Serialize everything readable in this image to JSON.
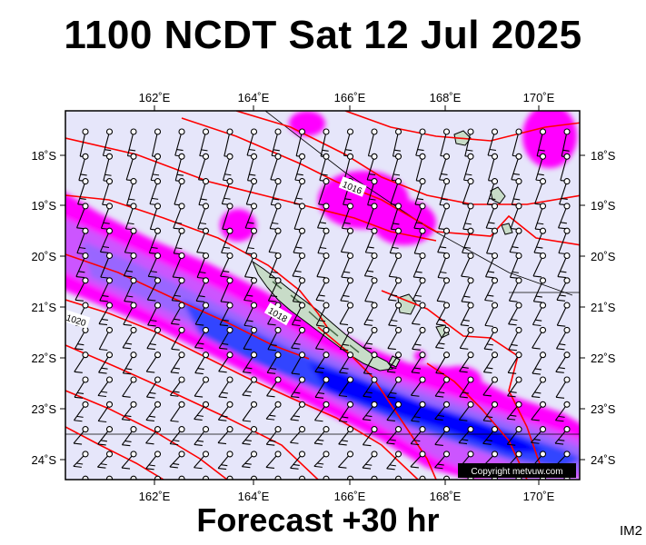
{
  "header": {
    "title": "1100 NCDT Sat 12 Jul 2025"
  },
  "footer": {
    "forecast": "Forecast +30 hr",
    "code": "IM2"
  },
  "map": {
    "lon_labels": [
      "162˚E",
      "164˚E",
      "166˚E",
      "168˚E",
      "170˚E"
    ],
    "lat_labels": [
      "18˚S",
      "19˚S",
      "20˚S",
      "21˚S",
      "22˚S",
      "23˚S",
      "24˚S"
    ],
    "isobar_labels": [
      "1016",
      "1020",
      "1018"
    ],
    "copyright": "Copyright metvuw.com",
    "colors": {
      "background": "#e6e6fa",
      "isobar": "#ff0000",
      "rain_light": "#ff00ff",
      "rain_mid": "#9933ff",
      "rain_heavy": "#0000ff",
      "land": "#c8dcc8"
    }
  }
}
